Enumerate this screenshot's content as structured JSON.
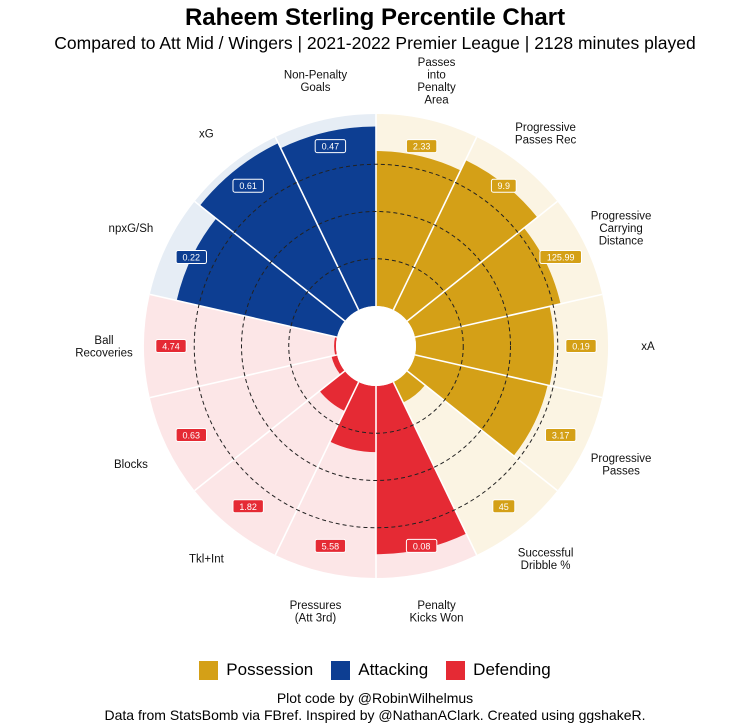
{
  "title": "Raheem Sterling Percentile Chart",
  "subtitle": "Compared to Att Mid / Wingers | 2021-2022 Premier League | 2128 minutes played",
  "colors": {
    "possession": "#D4A017",
    "attacking": "#0D3E92",
    "defending": "#E52A34",
    "possession_bg": "#FBF4E3",
    "attacking_bg": "#E6EDF5",
    "defending_bg": "#FCE6E7"
  },
  "chart_data": {
    "type": "polar-bar",
    "title": "Raheem Sterling Percentile Chart",
    "percentile_range": [
      0,
      100
    ],
    "gridlines": [
      25,
      50,
      75
    ],
    "categories": [
      {
        "label": "Passes\ninto\nPenalty\nArea",
        "group": "possession",
        "value": "2.33",
        "percentile": 82
      },
      {
        "label": "Progressive\nPasses Rec",
        "group": "possession",
        "value": "9.9",
        "percentile": 88
      },
      {
        "label": "Progressive\nCarrying\nDistance",
        "group": "possession",
        "value": "125.99",
        "percentile": 79
      },
      {
        "label": "xA",
        "group": "possession",
        "value": "0.19",
        "percentile": 73
      },
      {
        "label": "Progressive\nPasses",
        "group": "possession",
        "value": "3.17",
        "percentile": 72
      },
      {
        "label": "Successful\nDribble %",
        "group": "possession",
        "value": "45",
        "percentile": 12
      },
      {
        "label": "Penalty\nKicks Won",
        "group": "defending",
        "value": "0.08",
        "percentile": 89
      },
      {
        "label": "Pressures\n(Att 3rd)",
        "group": "defending",
        "value": "5.58",
        "percentile": 35
      },
      {
        "label": "Tkl+Int",
        "group": "defending",
        "value": "1.82",
        "percentile": 17
      },
      {
        "label": "Blocks",
        "group": "defending",
        "value": "0.63",
        "percentile": 3
      },
      {
        "label": "Ball\nRecoveries",
        "group": "defending",
        "value": "4.74",
        "percentile": 1
      },
      {
        "label": "npxG/Sh",
        "group": "attacking",
        "value": "0.22",
        "percentile": 87
      },
      {
        "label": "xG",
        "group": "attacking",
        "value": "0.61",
        "percentile": 98
      },
      {
        "label": "Non-Penalty\nGoals",
        "group": "attacking",
        "value": "0.47",
        "percentile": 95
      }
    ]
  },
  "legend": [
    {
      "label": "Possession",
      "group": "possession"
    },
    {
      "label": "Attacking",
      "group": "attacking"
    },
    {
      "label": "Defending",
      "group": "defending"
    }
  ],
  "caption": {
    "line1": "Plot code by @RobinWilhelmus",
    "line2": "Data from StatsBomb via FBref. Inspired by @NathanAClark. Created using ggshakeR."
  }
}
